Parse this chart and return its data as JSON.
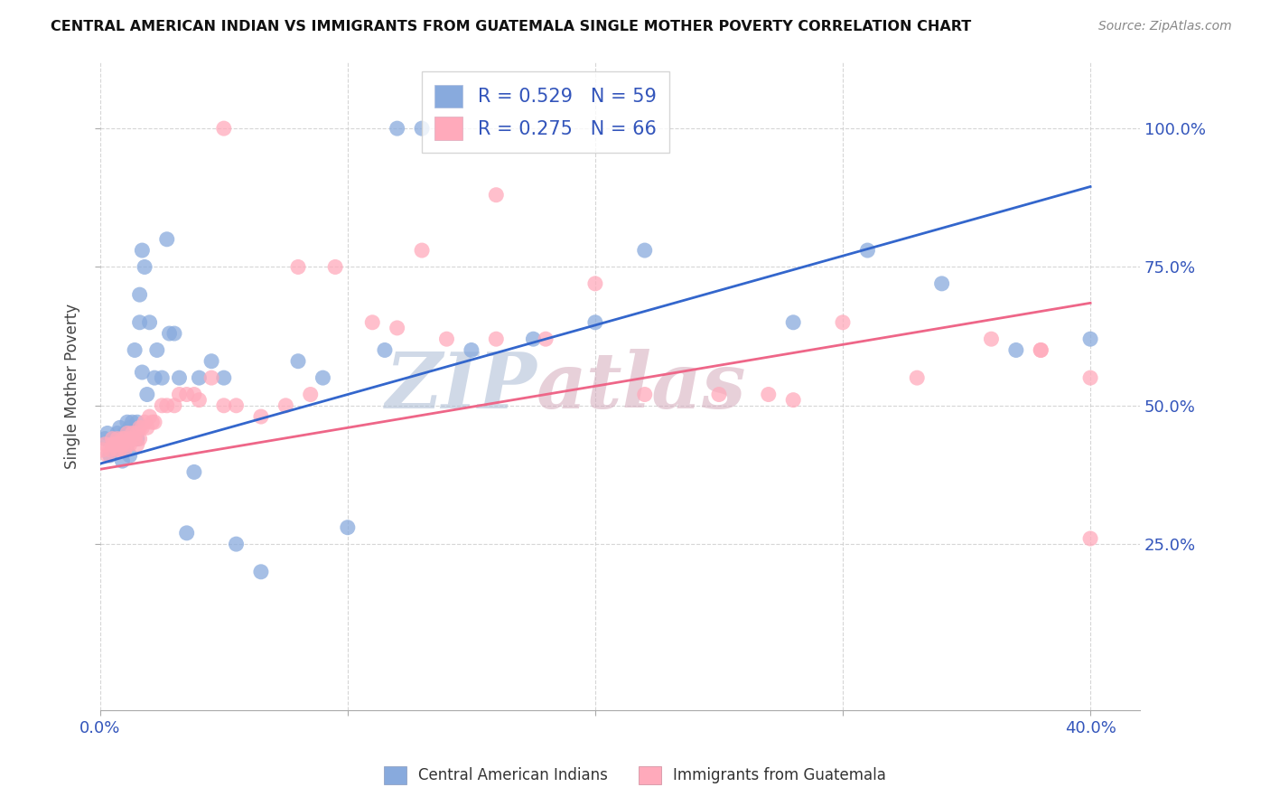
{
  "title": "CENTRAL AMERICAN INDIAN VS IMMIGRANTS FROM GUATEMALA SINGLE MOTHER POVERTY CORRELATION CHART",
  "source": "Source: ZipAtlas.com",
  "ylabel": "Single Mother Poverty",
  "ytick_labels": [
    "25.0%",
    "50.0%",
    "75.0%",
    "100.0%"
  ],
  "ytick_values": [
    0.25,
    0.5,
    0.75,
    1.0
  ],
  "xtick_positions": [
    0.0,
    0.1,
    0.2,
    0.3,
    0.4
  ],
  "xtick_labels": [
    "0.0%",
    "",
    "",
    "",
    "40.0%"
  ],
  "xlim": [
    0.0,
    0.42
  ],
  "ylim": [
    -0.05,
    1.12
  ],
  "legend_r1_text": "R = 0.529",
  "legend_n1_text": "N = 59",
  "legend_r2_text": "R = 0.275",
  "legend_n2_text": "N = 66",
  "color_blue": "#88AADD",
  "color_pink": "#FFAABB",
  "color_blue_line": "#3366CC",
  "color_pink_line": "#EE6688",
  "color_axis_text": "#3355BB",
  "watermark_zip": "ZIP",
  "watermark_atlas": "atlas",
  "watermark_color_zip": "#AABBD4",
  "watermark_color_atlas": "#D4AABB",
  "background_color": "#FFFFFF",
  "blue_line_y0": 0.395,
  "blue_line_y1": 0.895,
  "pink_line_y0": 0.385,
  "pink_line_y1": 0.685,
  "blue_x": [
    0.002,
    0.003,
    0.004,
    0.005,
    0.005,
    0.006,
    0.007,
    0.007,
    0.008,
    0.008,
    0.009,
    0.009,
    0.01,
    0.01,
    0.011,
    0.011,
    0.012,
    0.012,
    0.013,
    0.013,
    0.014,
    0.015,
    0.015,
    0.016,
    0.016,
    0.017,
    0.017,
    0.018,
    0.019,
    0.02,
    0.022,
    0.023,
    0.025,
    0.027,
    0.028,
    0.03,
    0.032,
    0.035,
    0.038,
    0.04,
    0.045,
    0.05,
    0.055,
    0.065,
    0.08,
    0.09,
    0.1,
    0.115,
    0.12,
    0.13,
    0.15,
    0.175,
    0.2,
    0.22,
    0.28,
    0.31,
    0.34,
    0.37,
    0.4
  ],
  "blue_y": [
    0.44,
    0.45,
    0.41,
    0.42,
    0.43,
    0.44,
    0.42,
    0.45,
    0.43,
    0.46,
    0.44,
    0.4,
    0.44,
    0.45,
    0.43,
    0.47,
    0.46,
    0.41,
    0.47,
    0.44,
    0.6,
    0.44,
    0.47,
    0.65,
    0.7,
    0.56,
    0.78,
    0.75,
    0.52,
    0.65,
    0.55,
    0.6,
    0.55,
    0.8,
    0.63,
    0.63,
    0.55,
    0.27,
    0.38,
    0.55,
    0.58,
    0.55,
    0.25,
    0.2,
    0.58,
    0.55,
    0.28,
    0.6,
    1.0,
    1.0,
    0.6,
    0.62,
    0.65,
    0.78,
    0.65,
    0.78,
    0.72,
    0.6,
    0.62
  ],
  "pink_x": [
    0.001,
    0.002,
    0.003,
    0.004,
    0.005,
    0.005,
    0.006,
    0.007,
    0.007,
    0.008,
    0.008,
    0.009,
    0.009,
    0.01,
    0.01,
    0.011,
    0.011,
    0.012,
    0.012,
    0.013,
    0.014,
    0.015,
    0.015,
    0.016,
    0.016,
    0.017,
    0.018,
    0.019,
    0.02,
    0.021,
    0.022,
    0.025,
    0.027,
    0.03,
    0.032,
    0.035,
    0.038,
    0.04,
    0.045,
    0.05,
    0.055,
    0.065,
    0.075,
    0.085,
    0.095,
    0.11,
    0.12,
    0.14,
    0.16,
    0.18,
    0.2,
    0.22,
    0.25,
    0.27,
    0.3,
    0.33,
    0.36,
    0.38,
    0.4,
    0.4,
    0.28,
    0.16,
    0.08,
    0.05,
    0.13,
    0.38
  ],
  "pink_y": [
    0.42,
    0.43,
    0.41,
    0.42,
    0.43,
    0.44,
    0.43,
    0.42,
    0.44,
    0.43,
    0.42,
    0.44,
    0.43,
    0.42,
    0.44,
    0.43,
    0.45,
    0.44,
    0.43,
    0.45,
    0.44,
    0.45,
    0.43,
    0.46,
    0.44,
    0.46,
    0.47,
    0.46,
    0.48,
    0.47,
    0.47,
    0.5,
    0.5,
    0.5,
    0.52,
    0.52,
    0.52,
    0.51,
    0.55,
    0.5,
    0.5,
    0.48,
    0.5,
    0.52,
    0.75,
    0.65,
    0.64,
    0.62,
    0.62,
    0.62,
    0.72,
    0.52,
    0.52,
    0.52,
    0.65,
    0.55,
    0.62,
    0.6,
    0.55,
    0.26,
    0.51,
    0.88,
    0.75,
    1.0,
    0.78,
    0.6
  ]
}
